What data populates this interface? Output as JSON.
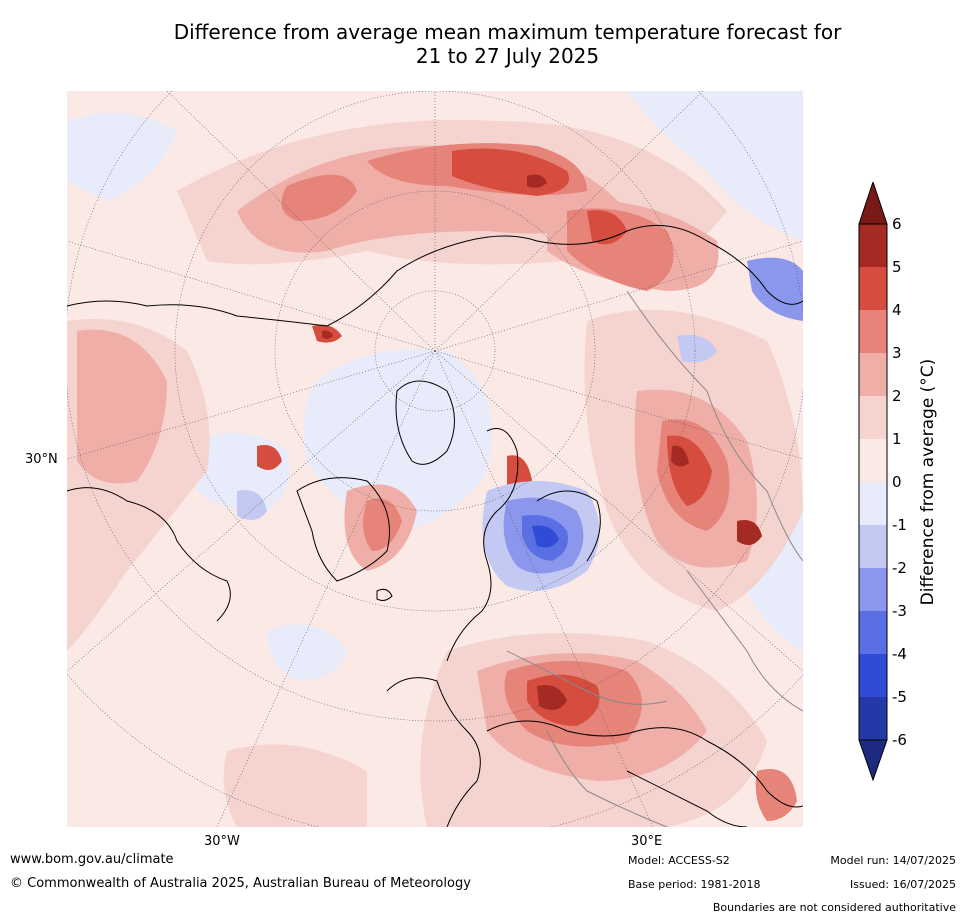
{
  "title_line1": "Difference from average mean maximum temperature forecast for",
  "title_line2": "21 to 27 July 2025",
  "axis_labels": {
    "lat": "30°N",
    "lon_left": "30°W",
    "lon_right": "30°E"
  },
  "colorbar": {
    "label": "Difference from average (°C)",
    "ticks": [
      "6",
      "5",
      "4",
      "3",
      "2",
      "1",
      "0",
      "-1",
      "-2",
      "-3",
      "-4",
      "-5",
      "-6"
    ],
    "colors": {
      "over": "#7a1a16",
      "c5_6": "#a52a24",
      "c4_5": "#d64d3f",
      "c3_4": "#e6847a",
      "c2_3": "#efafa8",
      "c1_2": "#f5d3cf",
      "c0_1": "#fbe9e6",
      "cm1_0": "#e7ebfa",
      "cm2_m1": "#c3c9f3",
      "cm3_m2": "#8a97ec",
      "cm4_m3": "#5a6fe3",
      "cm5_m4": "#2f4bd8",
      "cm6_m5": "#2438a8",
      "under": "#1d2a80"
    }
  },
  "footer": {
    "website": "www.bom.gov.au/climate",
    "copyright": "© Commonwealth of Australia 2025, Australian Bureau of Meteorology",
    "model": "Model: ACCESS-S2",
    "base_period": "Base period: 1981-2018",
    "model_run": "Model run: 14/07/2025",
    "issued": "Issued: 16/07/2025",
    "disclaimer": "Boundaries are not considered authoritative"
  }
}
